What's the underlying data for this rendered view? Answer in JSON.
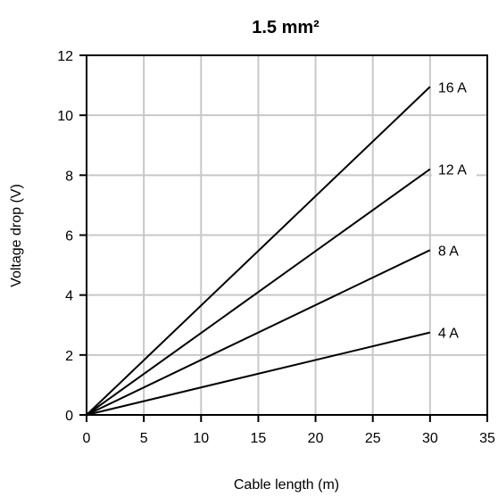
{
  "chart_data": {
    "type": "line",
    "title": "1.5 mm²",
    "xlabel": "Cable length (m)",
    "ylabel": "Voltage drop (V)",
    "xlim": [
      0,
      35
    ],
    "ylim": [
      0,
      12
    ],
    "xticks": [
      0,
      5,
      10,
      15,
      20,
      25,
      30,
      35
    ],
    "yticks": [
      0,
      2,
      4,
      6,
      8,
      10,
      12
    ],
    "grid": true,
    "legend": "labels at line ends",
    "series": [
      {
        "name": "16 A",
        "x": [
          0,
          30
        ],
        "y": [
          0,
          10.95
        ]
      },
      {
        "name": "12 A",
        "x": [
          0,
          30
        ],
        "y": [
          0,
          8.2
        ]
      },
      {
        "name": "8 A",
        "x": [
          0,
          30
        ],
        "y": [
          0,
          5.5
        ]
      },
      {
        "name": "4 A",
        "x": [
          0,
          30
        ],
        "y": [
          0,
          2.75
        ]
      }
    ]
  }
}
